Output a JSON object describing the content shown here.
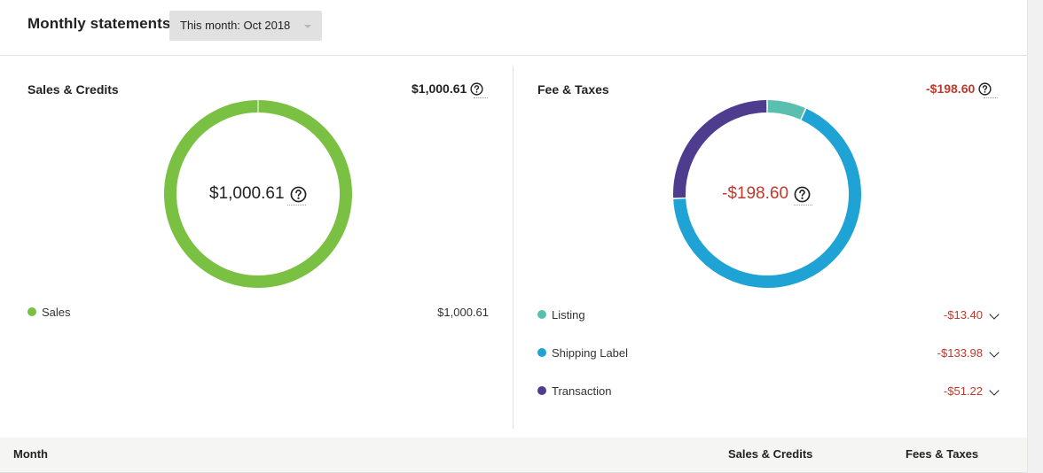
{
  "header": {
    "title": "Monthly statements",
    "month_select": {
      "value": "This month: Oct 2018"
    }
  },
  "sales_panel": {
    "title": "Sales & Credits",
    "total": "$1,000.61",
    "center_total": "$1,000.61",
    "legend": [
      {
        "label": "Sales",
        "value": "$1,000.61",
        "color": "#7ac143",
        "amount": 1000.61
      }
    ]
  },
  "fees_panel": {
    "title": "Fee & Taxes",
    "total": "-$198.60",
    "center_total": "-$198.60",
    "legend": [
      {
        "label": "Listing",
        "value": "-$13.40",
        "color": "#5bbfb0",
        "amount": 13.4
      },
      {
        "label": "Shipping Label",
        "value": "-$133.98",
        "color": "#1fa3d4",
        "amount": 133.98
      },
      {
        "label": "Transaction",
        "value": "-$51.22",
        "color": "#4e3c8e",
        "amount": 51.22
      }
    ]
  },
  "table": {
    "columns": [
      "Month",
      "Sales & Credits",
      "Fees & Taxes"
    ]
  },
  "colors": {
    "negative": "#c0392b",
    "sales": "#7ac143"
  }
}
